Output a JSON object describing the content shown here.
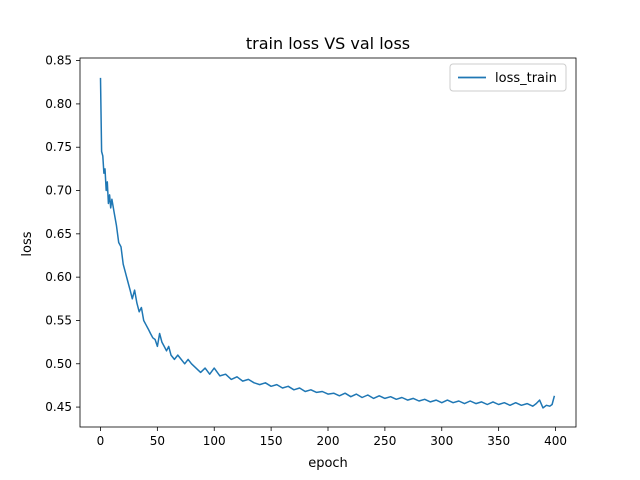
{
  "chart_data": {
    "type": "line",
    "title": "train loss VS val loss",
    "xlabel": "epoch",
    "ylabel": "loss",
    "xlim": [
      -18,
      418
    ],
    "ylim": [
      0.427,
      0.853
    ],
    "x_ticks": [
      0,
      50,
      100,
      150,
      200,
      250,
      300,
      350,
      400
    ],
    "x_tick_labels": [
      "0",
      "50",
      "100",
      "150",
      "200",
      "250",
      "300",
      "350",
      "400"
    ],
    "y_ticks": [
      0.45,
      0.5,
      0.55,
      0.6,
      0.65,
      0.7,
      0.75,
      0.8,
      0.85
    ],
    "y_tick_labels": [
      "0.45",
      "0.50",
      "0.55",
      "0.60",
      "0.65",
      "0.70",
      "0.75",
      "0.80",
      "0.85"
    ],
    "grid": false,
    "legend_position": "top-right",
    "series": [
      {
        "name": "loss_train",
        "color": "#1f77b4",
        "x": [
          0,
          1,
          2,
          3,
          4,
          5,
          6,
          7,
          8,
          9,
          10,
          12,
          14,
          16,
          18,
          20,
          22,
          24,
          26,
          28,
          30,
          32,
          34,
          36,
          38,
          40,
          42,
          44,
          46,
          48,
          50,
          52,
          54,
          56,
          58,
          60,
          62,
          65,
          68,
          71,
          74,
          77,
          80,
          84,
          88,
          92,
          96,
          100,
          105,
          110,
          115,
          120,
          125,
          130,
          135,
          140,
          145,
          150,
          155,
          160,
          165,
          170,
          175,
          180,
          185,
          190,
          195,
          200,
          205,
          210,
          215,
          220,
          225,
          230,
          235,
          240,
          245,
          250,
          255,
          260,
          265,
          270,
          275,
          280,
          285,
          290,
          295,
          300,
          305,
          310,
          315,
          320,
          325,
          330,
          335,
          340,
          345,
          350,
          355,
          360,
          365,
          370,
          375,
          380,
          383,
          386,
          389,
          392,
          395,
          397,
          399
        ],
        "y": [
          0.83,
          0.745,
          0.74,
          0.72,
          0.725,
          0.7,
          0.71,
          0.685,
          0.695,
          0.68,
          0.69,
          0.675,
          0.66,
          0.64,
          0.635,
          0.615,
          0.605,
          0.595,
          0.585,
          0.575,
          0.585,
          0.57,
          0.56,
          0.565,
          0.55,
          0.545,
          0.54,
          0.535,
          0.53,
          0.528,
          0.52,
          0.535,
          0.525,
          0.52,
          0.515,
          0.52,
          0.51,
          0.505,
          0.51,
          0.505,
          0.5,
          0.505,
          0.5,
          0.495,
          0.49,
          0.495,
          0.488,
          0.495,
          0.486,
          0.488,
          0.482,
          0.485,
          0.48,
          0.482,
          0.478,
          0.476,
          0.478,
          0.474,
          0.476,
          0.472,
          0.474,
          0.47,
          0.472,
          0.468,
          0.47,
          0.467,
          0.468,
          0.465,
          0.466,
          0.463,
          0.466,
          0.462,
          0.465,
          0.461,
          0.464,
          0.46,
          0.463,
          0.46,
          0.462,
          0.459,
          0.461,
          0.458,
          0.46,
          0.457,
          0.459,
          0.456,
          0.458,
          0.455,
          0.458,
          0.455,
          0.457,
          0.454,
          0.457,
          0.454,
          0.456,
          0.453,
          0.456,
          0.453,
          0.455,
          0.452,
          0.455,
          0.452,
          0.454,
          0.451,
          0.454,
          0.458,
          0.449,
          0.452,
          0.451,
          0.453,
          0.463
        ]
      }
    ]
  }
}
